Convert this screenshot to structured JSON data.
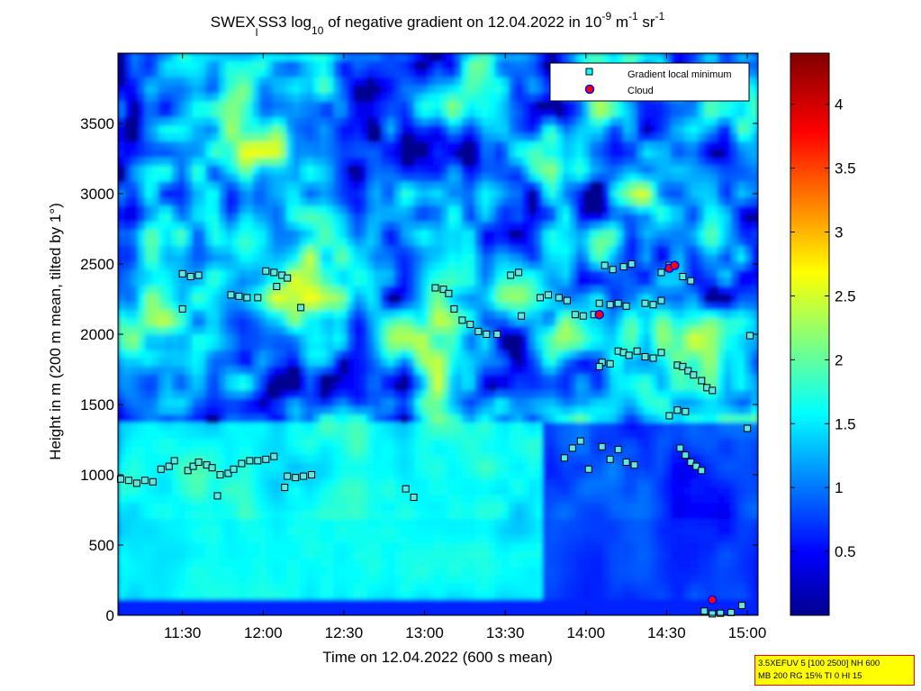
{
  "chart_data": {
    "type": "heatmap",
    "title_parts": [
      "SWEX",
      "l",
      "SS3 log",
      "10",
      " of negative gradient on 12.04.2022 in 10",
      "-9",
      " m",
      "-1",
      " sr",
      "-1"
    ],
    "xlabel": "Time on 12.04.2022 (600 s mean)",
    "ylabel": "Height in m (200 m mean, tilted by 1°)",
    "x_range": [
      "11:06",
      "15:04"
    ],
    "y_range": [
      0,
      4000
    ],
    "x_ticks": [
      "11:30",
      "12:00",
      "12:30",
      "13:00",
      "13:30",
      "14:00",
      "14:30",
      "15:00"
    ],
    "y_ticks": [
      0,
      500,
      1000,
      1500,
      2000,
      2500,
      3000,
      3500
    ],
    "colorbar": {
      "range": [
        0,
        4.4
      ],
      "ticks": [
        0.5,
        1,
        1.5,
        2,
        2.5,
        3,
        3.5,
        4
      ],
      "colormap": "jet"
    },
    "grid": false,
    "legend_position": "top-right",
    "series": [
      {
        "name": "Gradient local minimum",
        "marker": "square",
        "points": [
          [
            "11:07",
            970
          ],
          [
            "11:10",
            960
          ],
          [
            "11:13",
            940
          ],
          [
            "11:16",
            960
          ],
          [
            "11:19",
            950
          ],
          [
            "11:22",
            1040
          ],
          [
            "11:25",
            1060
          ],
          [
            "11:27",
            1100
          ],
          [
            "11:32",
            1030
          ],
          [
            "11:34",
            1060
          ],
          [
            "11:36",
            1090
          ],
          [
            "11:39",
            1070
          ],
          [
            "11:41",
            1050
          ],
          [
            "11:44",
            1000
          ],
          [
            "11:47",
            1010
          ],
          [
            "11:49",
            1040
          ],
          [
            "11:52",
            1080
          ],
          [
            "11:55",
            1100
          ],
          [
            "11:58",
            1100
          ],
          [
            "12:01",
            1110
          ],
          [
            "12:04",
            1130
          ],
          [
            "12:09",
            990
          ],
          [
            "12:12",
            980
          ],
          [
            "12:15",
            990
          ],
          [
            "12:18",
            1000
          ],
          [
            "12:08",
            910
          ],
          [
            "11:43",
            850
          ],
          [
            "11:30",
            2430
          ],
          [
            "11:33",
            2410
          ],
          [
            "11:36",
            2420
          ],
          [
            "11:30",
            2180
          ],
          [
            "11:48",
            2280
          ],
          [
            "11:51",
            2270
          ],
          [
            "11:54",
            2260
          ],
          [
            "11:58",
            2260
          ],
          [
            "12:01",
            2450
          ],
          [
            "12:04",
            2440
          ],
          [
            "12:07",
            2420
          ],
          [
            "12:09",
            2400
          ],
          [
            "12:05",
            2340
          ],
          [
            "12:14",
            2190
          ],
          [
            "12:53",
            900
          ],
          [
            "12:56",
            840
          ],
          [
            "13:04",
            2330
          ],
          [
            "13:07",
            2320
          ],
          [
            "13:09",
            2290
          ],
          [
            "13:11",
            2180
          ],
          [
            "13:14",
            2100
          ],
          [
            "13:17",
            2070
          ],
          [
            "13:20",
            2020
          ],
          [
            "13:23",
            2000
          ],
          [
            "13:27",
            2000
          ],
          [
            "13:32",
            2420
          ],
          [
            "13:35",
            2440
          ],
          [
            "13:36",
            2130
          ],
          [
            "13:43",
            2260
          ],
          [
            "13:46",
            2280
          ],
          [
            "13:50",
            2260
          ],
          [
            "13:53",
            2240
          ],
          [
            "13:56",
            2140
          ],
          [
            "13:59",
            2130
          ],
          [
            "14:03",
            2140
          ],
          [
            "14:05",
            2220
          ],
          [
            "14:09",
            2210
          ],
          [
            "14:12",
            2220
          ],
          [
            "14:15",
            2200
          ],
          [
            "14:07",
            2490
          ],
          [
            "14:10",
            2460
          ],
          [
            "14:14",
            2480
          ],
          [
            "14:17",
            2500
          ],
          [
            "14:28",
            2440
          ],
          [
            "14:31",
            2490
          ],
          [
            "14:22",
            2220
          ],
          [
            "14:25",
            2210
          ],
          [
            "14:28",
            2240
          ],
          [
            "14:36",
            2410
          ],
          [
            "14:39",
            2380
          ],
          [
            "14:12",
            1880
          ],
          [
            "14:14",
            1870
          ],
          [
            "14:16",
            1850
          ],
          [
            "14:19",
            1880
          ],
          [
            "14:22",
            1840
          ],
          [
            "14:25",
            1830
          ],
          [
            "14:28",
            1870
          ],
          [
            "14:06",
            1800
          ],
          [
            "14:09",
            1790
          ],
          [
            "14:05",
            1770
          ],
          [
            "14:34",
            1780
          ],
          [
            "14:36",
            1770
          ],
          [
            "14:38",
            1740
          ],
          [
            "14:40",
            1710
          ],
          [
            "14:43",
            1670
          ],
          [
            "14:45",
            1620
          ],
          [
            "14:47",
            1600
          ],
          [
            "14:34",
            1460
          ],
          [
            "14:37",
            1450
          ],
          [
            "14:31",
            1420
          ],
          [
            "13:52",
            1120
          ],
          [
            "13:55",
            1190
          ],
          [
            "13:58",
            1240
          ],
          [
            "14:01",
            1040
          ],
          [
            "14:06",
            1200
          ],
          [
            "14:09",
            1110
          ],
          [
            "14:12",
            1180
          ],
          [
            "14:15",
            1090
          ],
          [
            "14:18",
            1070
          ],
          [
            "14:35",
            1190
          ],
          [
            "14:37",
            1140
          ],
          [
            "14:39",
            1090
          ],
          [
            "14:41",
            1060
          ],
          [
            "14:43",
            1030
          ],
          [
            "14:44",
            30
          ],
          [
            "14:47",
            10
          ],
          [
            "14:50",
            15
          ],
          [
            "14:54",
            20
          ],
          [
            "14:58",
            70
          ],
          [
            "15:00",
            1330
          ],
          [
            "15:01",
            1990
          ]
        ]
      },
      {
        "name": "Cloud",
        "marker": "circle",
        "points": [
          [
            "14:47",
            110
          ],
          [
            "14:31",
            2470
          ],
          [
            "14:33",
            2490
          ],
          [
            "14:05",
            2140
          ]
        ]
      }
    ]
  },
  "info_box": [
    "3.5XEFUV 5 [100 2500] NH 600",
    "MB 200 RG 15% TI 0 HI 15"
  ]
}
